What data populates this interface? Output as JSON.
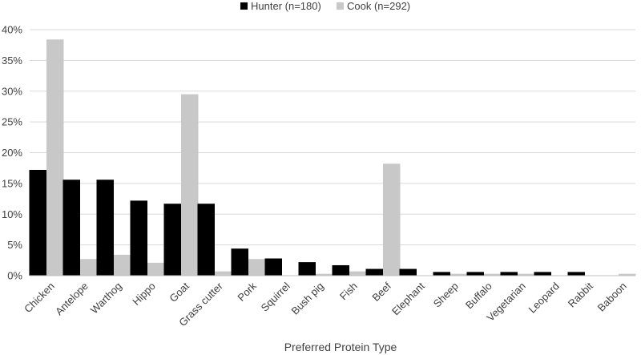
{
  "chart_data": {
    "type": "bar",
    "title": "",
    "xlabel": "Preferred  Protein Type",
    "ylabel": "",
    "ylim": [
      0,
      40
    ],
    "y_ticks": [
      0,
      5,
      10,
      15,
      20,
      25,
      30,
      35,
      40
    ],
    "y_tick_format": "{v}%",
    "grid": true,
    "legend_position": "top",
    "categories": [
      "Chicken",
      "Antelope",
      "Warthog",
      "Hippo",
      "Goat",
      "Grass cutter",
      "Pork",
      "Squirrel",
      "Bush pig",
      "Fish",
      "Beef",
      "Elephant",
      "Sheep",
      "Buffalo",
      "Vegetarian",
      "Leopard",
      "Rabbit",
      "Baboon"
    ],
    "series": [
      {
        "name": "Hunter (n=180)",
        "color": "#000000",
        "values": [
          17.2,
          15.6,
          15.6,
          12.2,
          11.7,
          11.7,
          4.4,
          2.8,
          2.2,
          1.7,
          1.1,
          1.1,
          0.6,
          0.6,
          0.6,
          0.6,
          0.6,
          0.0
        ]
      },
      {
        "name": "Cook (n=292)",
        "color": "#c8c8c8",
        "values": [
          38.4,
          2.7,
          3.4,
          2.1,
          29.5,
          0.7,
          2.7,
          0.0,
          0.3,
          0.7,
          18.2,
          0.0,
          0.3,
          0.3,
          0.3,
          0.0,
          0.0,
          0.3
        ]
      }
    ]
  }
}
